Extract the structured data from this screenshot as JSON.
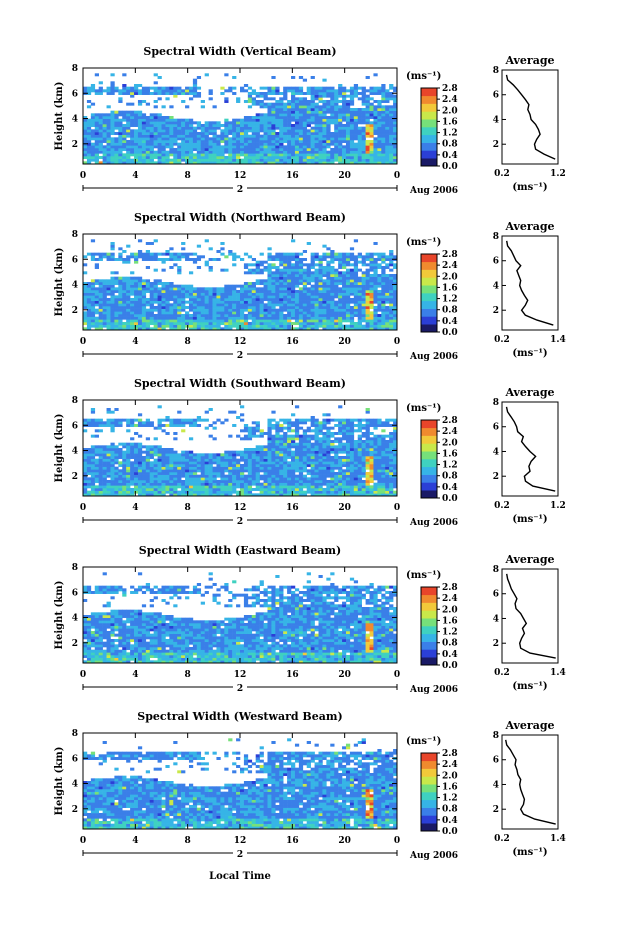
{
  "figure": {
    "xlabel_bottom": "Local Time",
    "date_label": "Aug 2006",
    "date_mid_label": "2",
    "unit_label": "(ms⁻¹)",
    "avg_title": "Average",
    "ylabel": "Height (km)"
  },
  "colorbar": {
    "ticks": [
      "2.8",
      "2.4",
      "2.0",
      "1.6",
      "1.2",
      "0.8",
      "0.4",
      "0.0"
    ],
    "colors": [
      "#1a1a66",
      "#2b3fd6",
      "#3a7fe8",
      "#36b4e6",
      "#3fd1c0",
      "#76e07a",
      "#c9e84a",
      "#f2c93a",
      "#f08a2e",
      "#e8452a"
    ]
  },
  "chart_data": [
    {
      "type": "heatmap",
      "title": "Spectral Width (Vertical Beam)",
      "xlabel": "Local Time",
      "ylabel": "Height (km)",
      "xlim": [
        0,
        24
      ],
      "ylim": [
        0.4,
        8
      ],
      "xticks": [
        "0",
        "4",
        "8",
        "12",
        "16",
        "20",
        "0"
      ],
      "yticks": [
        "2",
        "4",
        "6",
        "8"
      ],
      "colorbar_range": [
        0.0,
        2.8
      ],
      "colorbar_ticks": [
        "2.8",
        "2.4",
        "2.0",
        "1.6",
        "1.2",
        "0.8",
        "0.4",
        "0.0"
      ],
      "average_profile": {
        "xlim": [
          0.2,
          1.2
        ],
        "xticks": [
          "0.2",
          "1.2"
        ],
        "height": [
          0.8,
          1.2,
          1.6,
          2.0,
          2.4,
          2.8,
          3.2,
          3.6,
          4.0,
          4.4,
          4.8,
          5.2,
          5.6,
          6.0,
          6.4,
          6.8,
          7.2,
          7.6
        ],
        "width": [
          1.15,
          0.95,
          0.8,
          0.78,
          0.82,
          0.88,
          0.85,
          0.8,
          0.72,
          0.7,
          0.66,
          0.68,
          0.62,
          0.55,
          0.48,
          0.4,
          0.3,
          0.28
        ]
      }
    },
    {
      "type": "heatmap",
      "title": "Spectral Width (Northward Beam)",
      "xlabel": "Local Time",
      "ylabel": "Height (km)",
      "xlim": [
        0,
        24
      ],
      "ylim": [
        0.4,
        8
      ],
      "xticks": [
        "0",
        "4",
        "8",
        "12",
        "16",
        "20",
        "0"
      ],
      "yticks": [
        "2",
        "4",
        "6",
        "8"
      ],
      "colorbar_range": [
        0.0,
        2.8
      ],
      "colorbar_ticks": [
        "2.8",
        "2.4",
        "2.0",
        "1.6",
        "1.2",
        "0.8",
        "0.4",
        "0.0"
      ],
      "average_profile": {
        "xlim": [
          0.2,
          1.4
        ],
        "xticks": [
          "0.2",
          "1.4"
        ],
        "height": [
          0.8,
          1.2,
          1.6,
          2.0,
          2.4,
          2.8,
          3.2,
          3.6,
          4.0,
          4.4,
          4.8,
          5.2,
          5.6,
          6.0,
          6.4,
          6.8,
          7.2,
          7.6
        ],
        "width": [
          1.3,
          0.95,
          0.7,
          0.62,
          0.7,
          0.75,
          0.68,
          0.62,
          0.58,
          0.6,
          0.56,
          0.52,
          0.6,
          0.5,
          0.45,
          0.4,
          0.32,
          0.3
        ]
      }
    },
    {
      "type": "heatmap",
      "title": "Spectral Width (Southward Beam)",
      "xlabel": "Local Time",
      "ylabel": "Height (km)",
      "xlim": [
        0,
        24
      ],
      "ylim": [
        0.4,
        8
      ],
      "xticks": [
        "0",
        "4",
        "8",
        "12",
        "16",
        "20",
        "0"
      ],
      "yticks": [
        "2",
        "4",
        "6",
        "8"
      ],
      "colorbar_range": [
        0.0,
        2.8
      ],
      "colorbar_ticks": [
        "2.8",
        "2.4",
        "2.0",
        "1.6",
        "1.2",
        "0.8",
        "0.4",
        "0.0"
      ],
      "average_profile": {
        "xlim": [
          0.2,
          1.2
        ],
        "xticks": [
          "0.2",
          "1.2"
        ],
        "height": [
          0.8,
          1.2,
          1.6,
          2.0,
          2.4,
          2.8,
          3.2,
          3.6,
          4.0,
          4.4,
          4.8,
          5.2,
          5.6,
          6.0,
          6.4,
          6.8,
          7.2,
          7.6
        ],
        "width": [
          1.15,
          0.75,
          0.62,
          0.6,
          0.7,
          0.68,
          0.72,
          0.8,
          0.7,
          0.62,
          0.55,
          0.58,
          0.48,
          0.46,
          0.42,
          0.36,
          0.3,
          0.28
        ]
      }
    },
    {
      "type": "heatmap",
      "title": "Spectral Width (Eastward Beam)",
      "xlabel": "Local Time",
      "ylabel": "Height (km)",
      "xlim": [
        0,
        24
      ],
      "ylim": [
        0.4,
        8
      ],
      "xticks": [
        "0",
        "4",
        "8",
        "12",
        "16",
        "20",
        "0"
      ],
      "yticks": [
        "2",
        "4",
        "6",
        "8"
      ],
      "colorbar_range": [
        0.0,
        2.8
      ],
      "colorbar_ticks": [
        "2.8",
        "2.4",
        "2.0",
        "1.6",
        "1.2",
        "0.8",
        "0.4",
        "0.0"
      ],
      "average_profile": {
        "xlim": [
          0.2,
          1.4
        ],
        "xticks": [
          "0.2",
          "1.4"
        ],
        "height": [
          0.8,
          1.2,
          1.6,
          2.0,
          2.4,
          2.8,
          3.2,
          3.6,
          4.0,
          4.4,
          4.8,
          5.2,
          5.6,
          6.0,
          6.4,
          6.8,
          7.2,
          7.6
        ],
        "width": [
          1.35,
          0.8,
          0.6,
          0.58,
          0.62,
          0.68,
          0.64,
          0.72,
          0.66,
          0.6,
          0.5,
          0.48,
          0.52,
          0.46,
          0.4,
          0.36,
          0.32,
          0.3
        ]
      }
    },
    {
      "type": "heatmap",
      "title": "Spectral Width (Westward Beam)",
      "xlabel": "Local Time",
      "ylabel": "Height (km)",
      "xlim": [
        0,
        24
      ],
      "ylim": [
        0.4,
        8
      ],
      "xticks": [
        "0",
        "4",
        "8",
        "12",
        "16",
        "20",
        "0"
      ],
      "yticks": [
        "2",
        "4",
        "6",
        "8"
      ],
      "colorbar_range": [
        0.0,
        2.8
      ],
      "colorbar_ticks": [
        "2.8",
        "2.4",
        "2.0",
        "1.6",
        "1.2",
        "0.8",
        "0.4",
        "0.0"
      ],
      "average_profile": {
        "xlim": [
          0.2,
          1.4
        ],
        "xticks": [
          "0.2",
          "1.4"
        ],
        "height": [
          0.8,
          1.2,
          1.6,
          2.0,
          2.4,
          2.8,
          3.2,
          3.6,
          4.0,
          4.4,
          4.8,
          5.2,
          5.6,
          6.0,
          6.4,
          6.8,
          7.2,
          7.6
        ],
        "width": [
          1.35,
          0.9,
          0.66,
          0.6,
          0.66,
          0.68,
          0.64,
          0.6,
          0.58,
          0.6,
          0.54,
          0.52,
          0.48,
          0.5,
          0.44,
          0.38,
          0.3,
          0.28
        ]
      }
    }
  ]
}
